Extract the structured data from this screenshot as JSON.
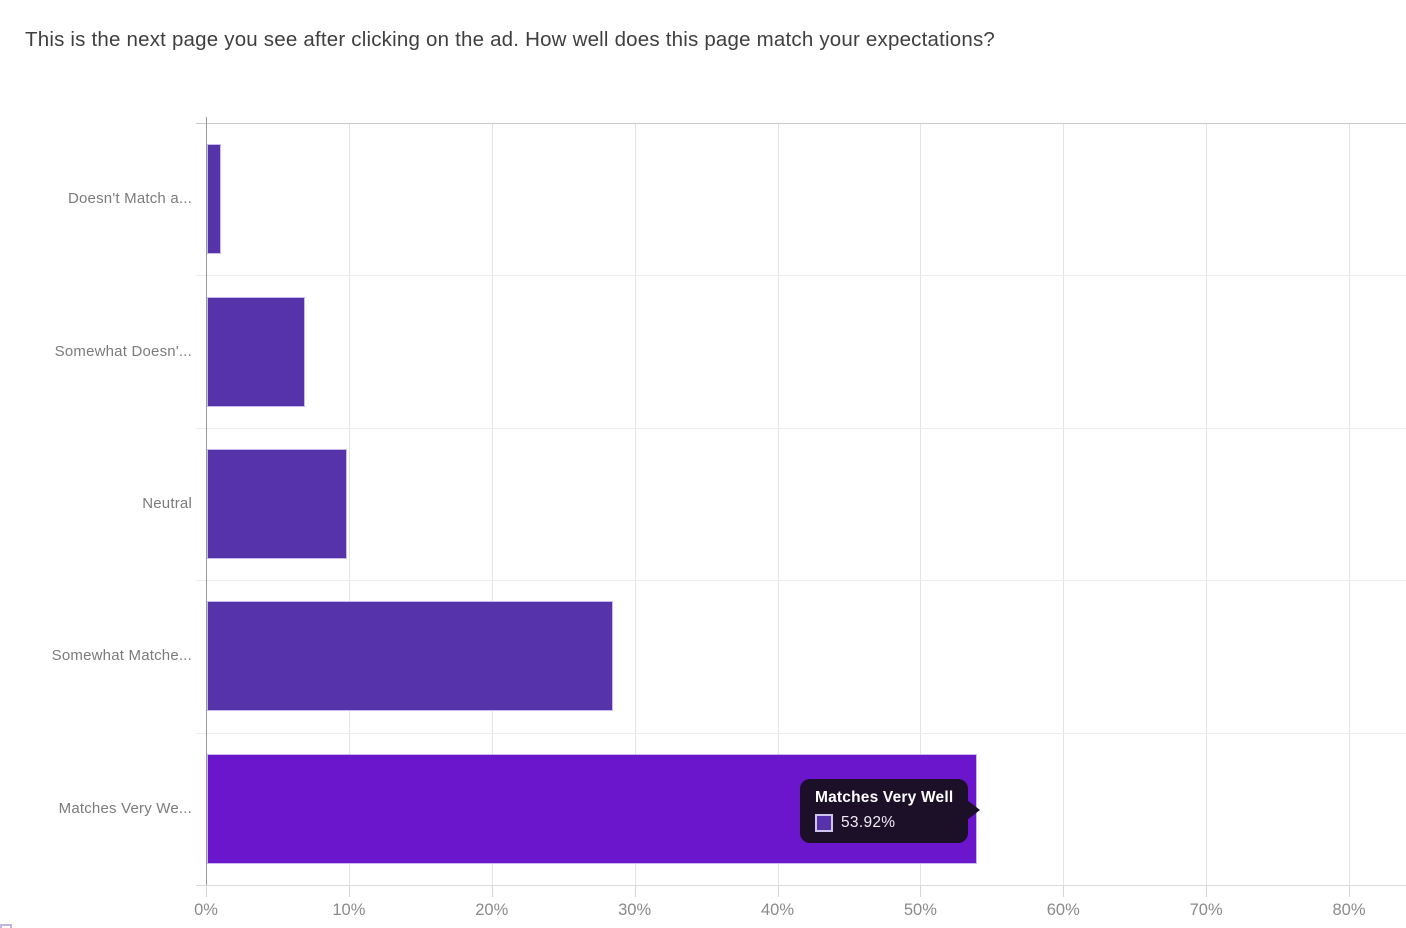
{
  "page": {
    "title": "This is the next page you see after clicking on the ad. How well does this page match your expectations?"
  },
  "chart_data": {
    "type": "bar",
    "orientation": "horizontal",
    "title": "This is the next page you see after clicking on the ad. How well does this page match your expectations?",
    "categories": [
      "Doesn't Match a...",
      "Somewhat Doesn'...",
      "Neutral",
      "Somewhat Matche...",
      "Matches Very We..."
    ],
    "values": [
      0.98,
      6.86,
      9.8,
      28.43,
      53.92
    ],
    "value_unit": "%",
    "xlabel": "",
    "ylabel": "",
    "x_tick_labels": [
      "0%",
      "10%",
      "20%",
      "30%",
      "40%",
      "50%",
      "60%",
      "70%",
      "80%"
    ],
    "x_tick_values": [
      0,
      10,
      20,
      30,
      40,
      50,
      60,
      70,
      80
    ],
    "xlim": [
      0,
      84
    ],
    "grid": true,
    "legend_position": "none",
    "bar_color": "#5733ab",
    "highlight_color": "#6b15cd",
    "highlighted_index": 4
  },
  "tooltip": {
    "title": "Matches Very Well",
    "value": "53.92%",
    "swatch_color": "#5733ab",
    "background_color": "#1c1028"
  }
}
